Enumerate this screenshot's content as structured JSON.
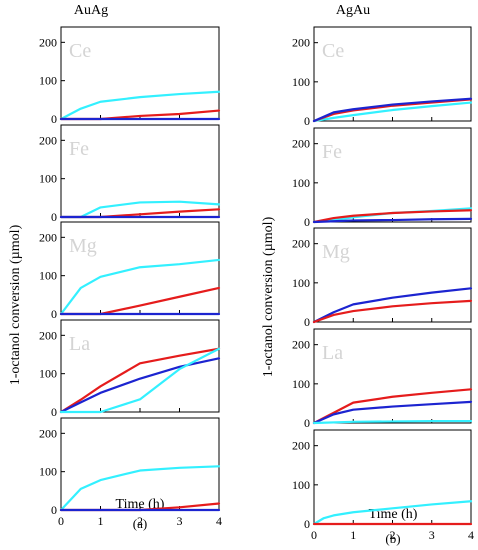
{
  "figure": {
    "y_label": "1-octanol conversion (µmol)",
    "x_label": "Time (h)"
  },
  "colors": {
    "cyan": "#33f0ff",
    "red": "#e51c1c",
    "blue": "#1c24d0"
  },
  "chart_data": [
    {
      "type": "line",
      "title": "AuAg",
      "subplot_label": "(a)",
      "xlabel": "Time (h)",
      "ylabel": "1-octanol conversion (µmol)",
      "xlim": [
        0,
        4
      ],
      "ylim": [
        0,
        240
      ],
      "x_ticks": [
        "0",
        "1",
        "2",
        "3",
        "4"
      ],
      "y_ticks": [
        "0",
        "100",
        "200"
      ],
      "grid": false,
      "panels": [
        {
          "label": "Ce",
          "series": [
            {
              "color": "cyan",
              "x": [
                0,
                0.5,
                1,
                2,
                3,
                4
              ],
              "y": [
                0,
                27,
                45,
                57,
                65,
                71
              ]
            },
            {
              "color": "red",
              "x": [
                0,
                1,
                2,
                3,
                4
              ],
              "y": [
                0,
                0,
                8,
                13,
                22
              ]
            },
            {
              "color": "blue",
              "x": [
                0,
                1,
                2,
                3,
                4
              ],
              "y": [
                0,
                0,
                0,
                0,
                0
              ]
            }
          ]
        },
        {
          "label": "Fe",
          "series": [
            {
              "color": "cyan",
              "x": [
                0,
                0.5,
                1,
                2,
                3,
                4
              ],
              "y": [
                0,
                0,
                25,
                38,
                40,
                33
              ]
            },
            {
              "color": "red",
              "x": [
                0,
                1,
                2,
                3,
                4
              ],
              "y": [
                0,
                0,
                7,
                14,
                20
              ]
            },
            {
              "color": "blue",
              "x": [
                0,
                1,
                2,
                3,
                4
              ],
              "y": [
                0,
                0,
                0,
                0,
                0
              ]
            }
          ]
        },
        {
          "label": "Mg",
          "series": [
            {
              "color": "cyan",
              "x": [
                0,
                0.5,
                1,
                2,
                3,
                4
              ],
              "y": [
                0,
                68,
                97,
                122,
                130,
                141
              ]
            },
            {
              "color": "red",
              "x": [
                0,
                1,
                2,
                3,
                4
              ],
              "y": [
                0,
                0,
                22,
                45,
                68
              ]
            },
            {
              "color": "blue",
              "x": [
                0,
                1,
                2,
                3,
                4
              ],
              "y": [
                0,
                0,
                0,
                0,
                0
              ]
            }
          ]
        },
        {
          "label": "La",
          "series": [
            {
              "color": "red",
              "x": [
                0,
                0.5,
                1,
                2,
                3,
                4
              ],
              "y": [
                0,
                32,
                67,
                127,
                147,
                165
              ]
            },
            {
              "color": "blue",
              "x": [
                0,
                0.5,
                1,
                2,
                3,
                4
              ],
              "y": [
                0,
                25,
                50,
                87,
                118,
                140
              ]
            },
            {
              "color": "cyan",
              "x": [
                0,
                0.5,
                1,
                2,
                3,
                4
              ],
              "y": [
                0,
                0,
                0,
                33,
                112,
                165
              ]
            }
          ]
        },
        {
          "label": "",
          "series": [
            {
              "color": "cyan",
              "x": [
                0,
                0.5,
                1,
                2,
                3,
                4
              ],
              "y": [
                0,
                55,
                78,
                103,
                110,
                114
              ]
            },
            {
              "color": "red",
              "x": [
                0,
                1,
                2,
                3,
                4
              ],
              "y": [
                0,
                0,
                0,
                7,
                17
              ]
            },
            {
              "color": "blue",
              "x": [
                0,
                1,
                2,
                3,
                4
              ],
              "y": [
                0,
                0,
                0,
                0,
                0
              ]
            }
          ]
        }
      ]
    },
    {
      "type": "line",
      "title": "AgAu",
      "subplot_label": "(b)",
      "xlabel": "Time (h)",
      "ylabel": "1-octanol conversion (µmol)",
      "xlim": [
        0,
        4
      ],
      "ylim": [
        0,
        240
      ],
      "x_ticks": [
        "0",
        "1",
        "2",
        "3",
        "4"
      ],
      "y_ticks": [
        "0",
        "100",
        "200"
      ],
      "grid": false,
      "panels": [
        {
          "label": "Ce",
          "series": [
            {
              "color": "cyan",
              "x": [
                0,
                0.5,
                1,
                2,
                3,
                4
              ],
              "y": [
                0,
                8,
                15,
                28,
                38,
                47
              ]
            },
            {
              "color": "red",
              "x": [
                0,
                0.5,
                1,
                2,
                3,
                4
              ],
              "y": [
                0,
                18,
                27,
                39,
                47,
                55
              ]
            },
            {
              "color": "blue",
              "x": [
                0,
                0.5,
                1,
                2,
                3,
                4
              ],
              "y": [
                0,
                22,
                30,
                42,
                50,
                57
              ]
            }
          ]
        },
        {
          "label": "Fe",
          "series": [
            {
              "color": "cyan",
              "x": [
                0,
                0.5,
                1,
                2,
                3,
                4
              ],
              "y": [
                0,
                5,
                12,
                23,
                28,
                35
              ]
            },
            {
              "color": "red",
              "x": [
                0,
                0.5,
                1,
                2,
                3,
                4
              ],
              "y": [
                0,
                10,
                16,
                23,
                27,
                30
              ]
            },
            {
              "color": "blue",
              "x": [
                0,
                0.5,
                1,
                2,
                3,
                4
              ],
              "y": [
                0,
                2,
                4,
                5,
                7,
                8
              ]
            }
          ]
        },
        {
          "label": "Mg",
          "series": [
            {
              "color": "blue",
              "x": [
                0,
                0.5,
                1,
                2,
                3,
                4
              ],
              "y": [
                0,
                25,
                45,
                62,
                75,
                86
              ]
            },
            {
              "color": "red",
              "x": [
                0,
                0.5,
                1,
                2,
                3,
                4
              ],
              "y": [
                0,
                18,
                28,
                40,
                48,
                54
              ]
            }
          ]
        },
        {
          "label": "La",
          "series": [
            {
              "color": "red",
              "x": [
                0,
                1,
                2,
                3,
                4
              ],
              "y": [
                0,
                52,
                67,
                77,
                86
              ]
            },
            {
              "color": "blue",
              "x": [
                0,
                0.5,
                1,
                2,
                3,
                4
              ],
              "y": [
                0,
                22,
                34,
                42,
                48,
                54
              ]
            },
            {
              "color": "cyan",
              "x": [
                0,
                1,
                2,
                3,
                4
              ],
              "y": [
                0,
                3,
                4,
                5,
                5
              ]
            }
          ]
        },
        {
          "label": "",
          "series": [
            {
              "color": "cyan",
              "x": [
                0,
                0.25,
                0.5,
                1,
                2,
                3,
                4
              ],
              "y": [
                0,
                15,
                22,
                30,
                40,
                50,
                58
              ]
            },
            {
              "color": "red",
              "x": [
                0,
                1,
                2,
                3,
                4
              ],
              "y": [
                0,
                0,
                0,
                0,
                0
              ]
            }
          ]
        }
      ]
    }
  ]
}
